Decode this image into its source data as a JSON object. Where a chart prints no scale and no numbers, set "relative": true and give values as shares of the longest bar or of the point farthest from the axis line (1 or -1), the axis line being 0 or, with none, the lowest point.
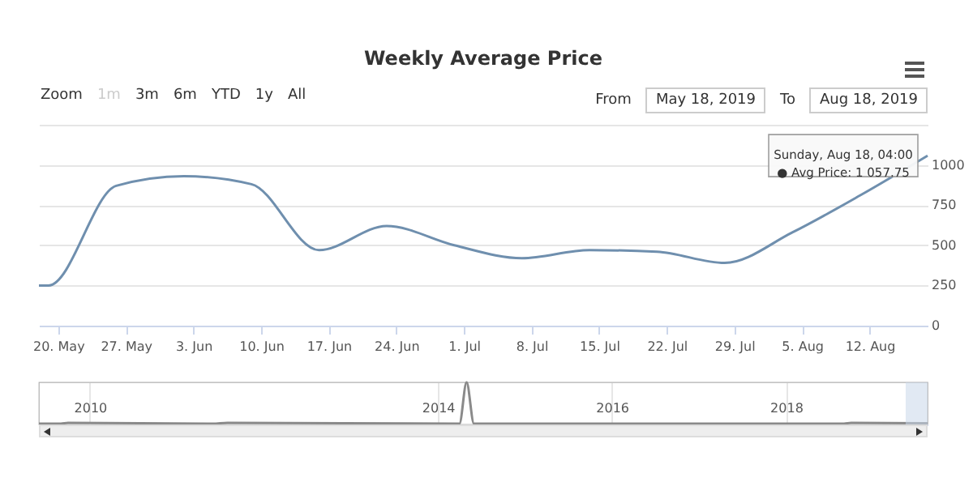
{
  "chart_data": [
    {
      "type": "line",
      "title": "Weekly Average Price",
      "color": "#6f8fae",
      "x": [
        "2019-05-18",
        "2019-05-19",
        "2019-05-26",
        "2019-06-02",
        "2019-06-09",
        "2019-06-16",
        "2019-06-23",
        "2019-06-30",
        "2019-07-07",
        "2019-07-14",
        "2019-07-21",
        "2019-07-28",
        "2019-08-04",
        "2019-08-11",
        "2019-08-18"
      ],
      "values": [
        250,
        250,
        870,
        930,
        880,
        470,
        620,
        500,
        420,
        470,
        460,
        390,
        580,
        810,
        1057.75
      ],
      "xlim": [
        "2019-05-18",
        "2019-08-18"
      ],
      "xticks": [
        {
          "value": "2019-05-20",
          "label": "20. May"
        },
        {
          "value": "2019-05-27",
          "label": "27. May"
        },
        {
          "value": "2019-06-03",
          "label": "3. Jun"
        },
        {
          "value": "2019-06-10",
          "label": "10. Jun"
        },
        {
          "value": "2019-06-17",
          "label": "17. Jun"
        },
        {
          "value": "2019-06-24",
          "label": "24. Jun"
        },
        {
          "value": "2019-07-01",
          "label": "1. Jul"
        },
        {
          "value": "2019-07-08",
          "label": "8. Jul"
        },
        {
          "value": "2019-07-15",
          "label": "15. Jul"
        },
        {
          "value": "2019-07-22",
          "label": "22. Jul"
        },
        {
          "value": "2019-07-29",
          "label": "29. Jul"
        },
        {
          "value": "2019-08-05",
          "label": "5. Aug"
        },
        {
          "value": "2019-08-12",
          "label": "12. Aug"
        }
      ],
      "ylim": [
        0,
        1250
      ],
      "yticks": [
        0,
        250,
        500,
        750,
        1000,
        {
          "value": 1250,
          "label": null
        }
      ],
      "grid": "y",
      "legend": false,
      "annotations": [
        "Zoom",
        "1m",
        "3m",
        "6m",
        "YTD",
        "1y",
        "All",
        "From",
        "May 18, 2019",
        "To",
        "Aug 18, 2019",
        {
          "text": "Sunday, Aug 18, 04:00\n● Avg Price: 1 057.75",
          "x": "2019-08-18",
          "y": 1057.75
        }
      ]
    },
    {
      "type": "line",
      "relative": true,
      "color": "#8a8a8a",
      "x": [
        "2009-06",
        "2009-09",
        "2009-10",
        "2011-06",
        "2011-08",
        "2014-04",
        "2014-05",
        "2014-06",
        "2017-06",
        "2018-09",
        "2018-10",
        "2019-08-18"
      ],
      "values": [
        0.02,
        0.02,
        0.04,
        0.02,
        0.04,
        0.02,
        1,
        0.02,
        0.02,
        0.02,
        0.04,
        0.03
      ],
      "xlim": [
        "2009-06",
        "2019-08-18"
      ],
      "xticks": [
        {
          "value": "2010",
          "label": "2010"
        },
        {
          "value": "2014",
          "label": "2014"
        },
        {
          "value": "2016",
          "label": "2016"
        },
        {
          "value": "2018",
          "label": "2018"
        }
      ],
      "grid": "x",
      "legend": false,
      "bands": [
        {
          "axis": "x",
          "from": "2019-05-18",
          "to": "2019-08-18",
          "color": "#c8d7ea"
        }
      ]
    }
  ]
}
